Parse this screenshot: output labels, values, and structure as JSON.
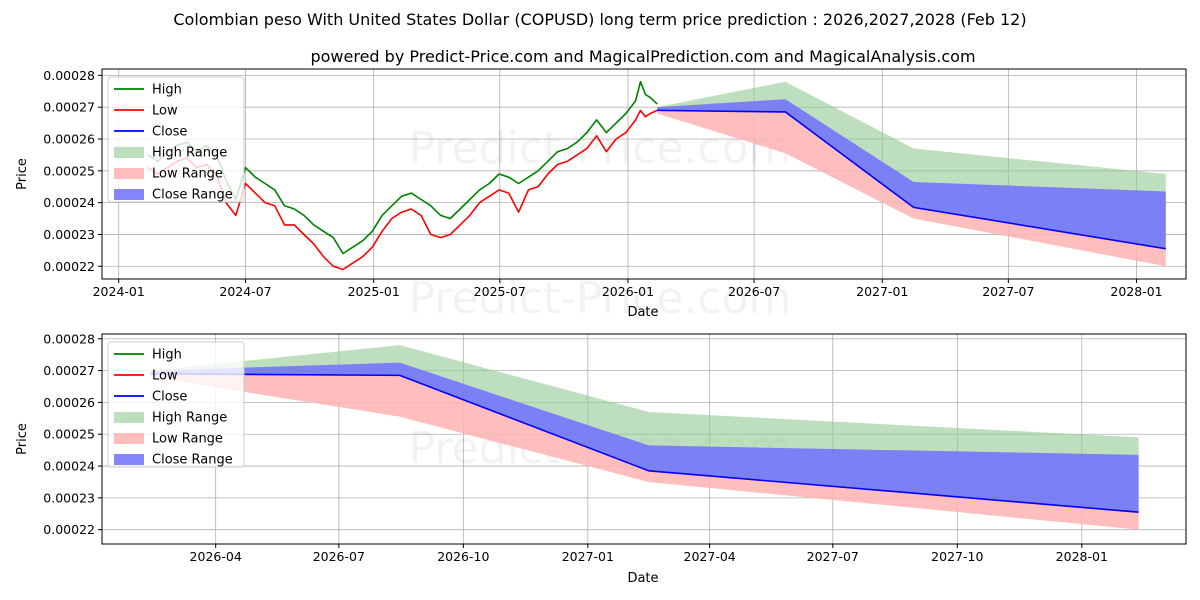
{
  "title": "Colombian peso With United States Dollar (COPUSD) long term price prediction : 2026,2027,2028 (Feb 12)",
  "subtitle": "powered by Predict-Price.com and MagicalPrediction.com and MagicalAnalysis.com",
  "watermark": "Predict-Price.com",
  "colors": {
    "high": "#008000",
    "low": "#ff0000",
    "close": "#0000ff",
    "high_range": "#93c993",
    "low_range": "#ffb3b3",
    "close_range": "#7070ff"
  },
  "chart_data": [
    {
      "type": "line",
      "id": "top",
      "xlabel": "Date",
      "ylabel": "Price",
      "xlim": [
        "2023-12-08",
        "2028-03-12"
      ],
      "ylim": [
        0.000216,
        0.000282
      ],
      "xticks": [
        {
          "date": "2024-01-01",
          "label": "2024-01"
        },
        {
          "date": "2024-07-01",
          "label": "2024-07"
        },
        {
          "date": "2025-01-01",
          "label": "2025-01"
        },
        {
          "date": "2025-07-01",
          "label": "2025-07"
        },
        {
          "date": "2026-01-01",
          "label": "2026-01"
        },
        {
          "date": "2026-07-01",
          "label": "2026-07"
        },
        {
          "date": "2027-01-01",
          "label": "2027-01"
        },
        {
          "date": "2027-07-01",
          "label": "2027-07"
        },
        {
          "date": "2028-01-01",
          "label": "2028-01"
        }
      ],
      "yticks": [
        {
          "value": 0.00022,
          "label": "0.00022"
        },
        {
          "value": 0.00023,
          "label": "0.00023"
        },
        {
          "value": 0.00024,
          "label": "0.00024"
        },
        {
          "value": 0.00025,
          "label": "0.00025"
        },
        {
          "value": 0.00026,
          "label": "0.00026"
        },
        {
          "value": 0.00027,
          "label": "0.00027"
        },
        {
          "value": 0.00028,
          "label": "0.00028"
        }
      ],
      "grid": true,
      "legend_position": "top-left",
      "legend": [
        "High",
        "Low",
        "Close",
        "High Range",
        "Low Range",
        "Close Range"
      ],
      "history": {
        "dates": [
          "2024-02-12",
          "2024-02-26",
          "2024-03-11",
          "2024-03-25",
          "2024-04-08",
          "2024-04-22",
          "2024-05-06",
          "2024-05-20",
          "2024-06-03",
          "2024-06-17",
          "2024-07-01",
          "2024-07-15",
          "2024-07-29",
          "2024-08-12",
          "2024-08-26",
          "2024-09-09",
          "2024-09-23",
          "2024-10-07",
          "2024-10-21",
          "2024-11-04",
          "2024-11-18",
          "2024-12-02",
          "2024-12-16",
          "2024-12-30",
          "2025-01-13",
          "2025-01-27",
          "2025-02-10",
          "2025-02-24",
          "2025-03-10",
          "2025-03-24",
          "2025-04-07",
          "2025-04-21",
          "2025-05-05",
          "2025-05-19",
          "2025-06-02",
          "2025-06-16",
          "2025-06-30",
          "2025-07-14",
          "2025-07-28",
          "2025-08-11",
          "2025-08-25",
          "2025-09-08",
          "2025-09-22",
          "2025-10-06",
          "2025-10-20",
          "2025-11-03",
          "2025-11-17",
          "2025-12-01",
          "2025-12-15",
          "2025-12-29",
          "2026-01-12",
          "2026-01-19",
          "2026-01-26",
          "2026-02-02",
          "2026-02-12"
        ],
        "high": [
          0.000255,
          0.000253,
          0.000256,
          0.000258,
          0.000259,
          0.000256,
          0.000258,
          0.000255,
          0.000247,
          0.000241,
          0.000251,
          0.000248,
          0.000246,
          0.000244,
          0.000239,
          0.000238,
          0.000236,
          0.000233,
          0.000231,
          0.000229,
          0.000224,
          0.000226,
          0.000228,
          0.000231,
          0.000236,
          0.000239,
          0.000242,
          0.000243,
          0.000241,
          0.000239,
          0.000236,
          0.000235,
          0.000238,
          0.000241,
          0.000244,
          0.000246,
          0.000249,
          0.000248,
          0.000246,
          0.000248,
          0.00025,
          0.000253,
          0.000256,
          0.000257,
          0.000259,
          0.000262,
          0.000266,
          0.000262,
          0.000265,
          0.000268,
          0.000272,
          0.000278,
          0.000274,
          0.000273,
          0.000271
        ],
        "low": [
          0.000251,
          0.000249,
          0.000251,
          0.000253,
          0.000254,
          0.000251,
          0.000252,
          0.000249,
          0.00024,
          0.000236,
          0.000246,
          0.000243,
          0.00024,
          0.000239,
          0.000233,
          0.000233,
          0.00023,
          0.000227,
          0.000223,
          0.00022,
          0.000219,
          0.000221,
          0.000223,
          0.000226,
          0.000231,
          0.000235,
          0.000237,
          0.000238,
          0.000236,
          0.00023,
          0.000229,
          0.00023,
          0.000233,
          0.000236,
          0.00024,
          0.000242,
          0.000244,
          0.000243,
          0.000237,
          0.000244,
          0.000245,
          0.000249,
          0.000252,
          0.000253,
          0.000255,
          0.000257,
          0.000261,
          0.000256,
          0.00026,
          0.000262,
          0.000266,
          0.000269,
          0.000267,
          0.000268,
          0.000269
        ]
      },
      "forecast": {
        "dates": [
          "2026-02-12",
          "2026-08-15",
          "2027-02-15",
          "2028-02-12"
        ],
        "close": [
          0.000269,
          0.0002685,
          0.0002385,
          0.0002255
        ],
        "high_range_upper": [
          0.00027,
          0.000278,
          0.000257,
          0.000249
        ],
        "close_range_upper": [
          0.00027,
          0.0002725,
          0.0002465,
          0.0002435
        ],
        "low_range_lower": [
          0.000268,
          0.0002555,
          0.000235,
          0.00022
        ]
      }
    },
    {
      "type": "line",
      "id": "bottom",
      "xlabel": "Date",
      "ylabel": "Price",
      "xlim": [
        "2026-01-07",
        "2028-03-18"
      ],
      "ylim": [
        0.0002155,
        0.0002815
      ],
      "xticks": [
        {
          "date": "2026-04-01",
          "label": "2026-04"
        },
        {
          "date": "2026-07-01",
          "label": "2026-07"
        },
        {
          "date": "2026-10-01",
          "label": "2026-10"
        },
        {
          "date": "2027-01-01",
          "label": "2027-01"
        },
        {
          "date": "2027-04-01",
          "label": "2027-04"
        },
        {
          "date": "2027-07-01",
          "label": "2027-07"
        },
        {
          "date": "2027-10-01",
          "label": "2027-10"
        },
        {
          "date": "2028-01-01",
          "label": "2028-01"
        }
      ],
      "yticks": [
        {
          "value": 0.00022,
          "label": "0.00022"
        },
        {
          "value": 0.00023,
          "label": "0.00023"
        },
        {
          "value": 0.00024,
          "label": "0.00024"
        },
        {
          "value": 0.00025,
          "label": "0.00025"
        },
        {
          "value": 0.00026,
          "label": "0.00026"
        },
        {
          "value": 0.00027,
          "label": "0.00027"
        },
        {
          "value": 0.00028,
          "label": "0.00028"
        }
      ],
      "grid": true,
      "legend_position": "top-left",
      "legend": [
        "High",
        "Low",
        "Close",
        "High Range",
        "Low Range",
        "Close Range"
      ],
      "forecast": {
        "dates": [
          "2026-02-12",
          "2026-08-15",
          "2027-02-15",
          "2028-02-12"
        ],
        "close": [
          0.000269,
          0.0002685,
          0.0002385,
          0.0002255
        ],
        "high_range_upper": [
          0.00027,
          0.000278,
          0.000257,
          0.000249
        ],
        "close_range_upper": [
          0.00027,
          0.0002725,
          0.0002465,
          0.0002435
        ],
        "low_range_lower": [
          0.000268,
          0.0002555,
          0.000235,
          0.00022
        ]
      }
    }
  ]
}
